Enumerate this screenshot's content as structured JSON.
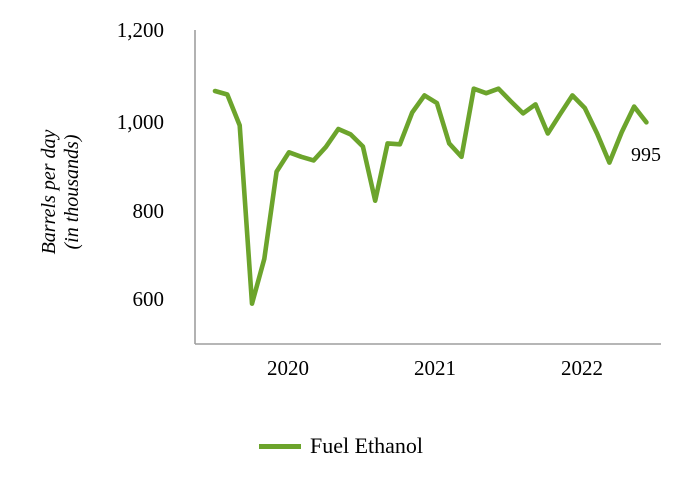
{
  "chart_data": {
    "type": "line",
    "title": "",
    "ylabel_lines": [
      "Barrels per day",
      "(in thousands)"
    ],
    "xlabel": "",
    "y_tick_labels": [
      "1,200",
      "1,000",
      "800",
      "600"
    ],
    "y_tick_values": [
      1200,
      1000,
      800,
      600
    ],
    "x_tick_labels": [
      "2020",
      "2021",
      "2022"
    ],
    "ylim": [
      500,
      1200
    ],
    "grid": false,
    "legend_position": "bottom-center",
    "end_label": "995",
    "axis_color": "#9e9e9e",
    "series": [
      {
        "name": "Fuel Ethanol",
        "color": "#6ca42c",
        "x": [
          "Jan 2020",
          "Feb 2020",
          "Mar 2020",
          "Apr 2020",
          "May 2020",
          "Jun 2020",
          "Jul 2020",
          "Aug 2020",
          "Sep 2020",
          "Oct 2020",
          "Nov 2020",
          "Dec 2020",
          "Jan 2021",
          "Feb 2021",
          "Mar 2021",
          "Apr 2021",
          "May 2021",
          "Jun 2021",
          "Jul 2021",
          "Aug 2021",
          "Sep 2021",
          "Oct 2021",
          "Nov 2021",
          "Dec 2021",
          "Jan 2022",
          "Feb 2022",
          "Mar 2022",
          "Apr 2022",
          "May 2022",
          "Jun 2022",
          "Jul 2022",
          "Aug 2022",
          "Sep 2022",
          "Oct 2022",
          "Nov 2022",
          "Dec 2022"
        ],
        "values": [
          1065,
          1057,
          988,
          590,
          690,
          885,
          928,
          918,
          910,
          940,
          980,
          968,
          941,
          820,
          948,
          946,
          1017,
          1055,
          1038,
          948,
          918,
          1070,
          1060,
          1070,
          1042,
          1015,
          1035,
          970,
          1013,
          1055,
          1027,
          970,
          905,
          973,
          1030,
          995
        ]
      }
    ]
  },
  "legend": {
    "label": "Fuel Ethanol"
  }
}
